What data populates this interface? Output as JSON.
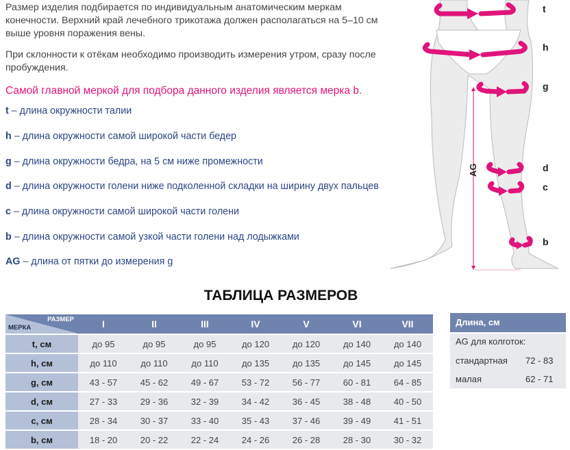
{
  "intro": [
    "Размер изделия подбирается по индивидуальным анатомическим меркам конечности. Верхний край лечебного трикотажа должен располагаться на 5–10 см выше уровня поражения вены.",
    "При склонности к отёкам необходимо производить измерения утром, сразу после пробуждения."
  ],
  "highlight": "Самой главной меркой для подбора данного изделия является мерка b.",
  "definitions": [
    {
      "key": "t",
      "text": " – длина окружности талии"
    },
    {
      "key": "h",
      "text": " – длина окружности самой широкой части бедер"
    },
    {
      "key": "g",
      "text": " – длина окружности бедра, на 5 см ниже промежности"
    },
    {
      "key": "d",
      "text": " – длина окружности голени ниже подколенной складки на ширину двух пальцев"
    },
    {
      "key": "c",
      "text": " – длина окружности самой широкой части голени"
    },
    {
      "key": "b",
      "text": " – длина окружности самой узкой части голени над лодыжками"
    },
    {
      "key": "AG",
      "text": " – длина от пятки до измерения g"
    }
  ],
  "diagram": {
    "labels": [
      "t",
      "h",
      "g",
      "d",
      "c",
      "b"
    ],
    "ag": "AG",
    "accent": "#e0147a"
  },
  "table": {
    "title": "ТАБЛИЦА РАЗМЕРОВ",
    "corner_size": "РАЗМЕР",
    "corner_measure": "МЕРКА",
    "sizes": [
      "I",
      "II",
      "III",
      "IV",
      "V",
      "VI",
      "VII"
    ],
    "rows": [
      {
        "label": "t, см",
        "values": [
          "до 95",
          "до 95",
          "до 95",
          "до 120",
          "до 120",
          "до 140",
          "до 140"
        ]
      },
      {
        "label": "h, см",
        "values": [
          "до 110",
          "до 110",
          "до 110",
          "до 135",
          "до 135",
          "до 145",
          "до 145"
        ]
      },
      {
        "label": "g, см",
        "values": [
          "43 - 57",
          "45 - 62",
          "49 - 67",
          "53 - 72",
          "56 - 77",
          "60 - 81",
          "64 - 85"
        ]
      },
      {
        "label": "d, см",
        "values": [
          "27 - 33",
          "29 - 36",
          "32 - 39",
          "34 - 42",
          "36 - 45",
          "38 - 48",
          "40 - 50"
        ]
      },
      {
        "label": "c, см",
        "values": [
          "28 - 34",
          "30 - 37",
          "33 - 40",
          "35 - 43",
          "37 - 46",
          "39 - 49",
          "41 - 51"
        ]
      },
      {
        "label": "b, см",
        "values": [
          "18 - 20",
          "20 - 22",
          "22 - 24",
          "24 - 26",
          "26 - 28",
          "28 - 30",
          "30 - 32"
        ]
      }
    ]
  },
  "length_panel": {
    "header": "Длина, см",
    "subtitle": "AG для колготок:",
    "rows": [
      {
        "label": "стандартная",
        "value": "72 - 83"
      },
      {
        "label": "малая",
        "value": "62 - 71"
      }
    ]
  }
}
